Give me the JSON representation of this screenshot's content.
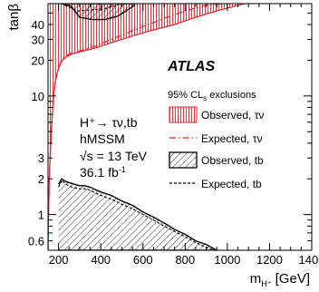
{
  "chart_data": {
    "type": "line",
    "title": "",
    "xlabel_main": "m",
    "xlabel_sub": "H⁺",
    "xlabel_unit": " [GeV]",
    "ylabel": "tanβ",
    "xlim": [
      150,
      1400
    ],
    "ylim": [
      0.5,
      60
    ],
    "yscale": "log",
    "x_ticks": [
      200,
      400,
      600,
      800,
      1000,
      1200,
      1400
    ],
    "x_tick_labels": [
      "200",
      "400",
      "600",
      "800",
      "1000",
      "1200",
      "1400"
    ],
    "y_ticks": [
      0.6,
      1,
      2,
      3,
      10,
      20,
      30,
      40
    ],
    "y_tick_labels": [
      "0.6",
      "1",
      "2",
      "3",
      "10",
      "20",
      "30",
      "40"
    ],
    "experiment": "ATLAS",
    "legend_title": "95% CL",
    "legend_title_sub": "s",
    "legend_title_rest": " exclusions",
    "legend": [
      {
        "label": "Observed, τν",
        "kind": "red-hatch"
      },
      {
        "label": "Expected, τν",
        "kind": "red-dash"
      },
      {
        "label": "Observed, tb",
        "kind": "black-hatch"
      },
      {
        "label": "Expected, tb",
        "kind": "black-dash"
      }
    ],
    "info_lines": [
      "H⁺→ τν,tb",
      "hMSSM",
      "√s = 13 TeV",
      "36.1 fb"
    ],
    "info_lumi_sup": "-1",
    "colors": {
      "tau": "#e8202a",
      "tb": "#000000"
    },
    "series": [
      {
        "name": "Observed, τν",
        "x": [
          150,
          152,
          156,
          160,
          166,
          170,
          176,
          182,
          190,
          200,
          210,
          225,
          240,
          260,
          280,
          300,
          340,
          380,
          420,
          460,
          500,
          550,
          600,
          650,
          700,
          750,
          800,
          850,
          900,
          950,
          1000,
          1050,
          1080,
          1100
        ],
        "y": [
          0.5,
          1,
          2,
          3,
          5,
          7,
          9.5,
          12,
          14.5,
          17,
          19,
          20.5,
          21.5,
          22.5,
          23,
          23.5,
          24.5,
          25.5,
          27,
          28.5,
          30,
          32,
          34,
          36,
          38,
          40,
          43,
          46,
          49,
          52,
          55,
          58,
          60,
          60
        ]
      },
      {
        "name": "Expected, τν",
        "x": [
          150,
          152,
          156,
          160,
          165,
          170,
          176,
          182,
          190,
          200,
          212,
          225,
          240,
          260,
          280,
          300,
          340,
          380,
          420,
          460,
          500,
          550,
          600,
          650,
          700,
          750,
          800,
          850,
          900,
          950,
          990
        ],
        "y": [
          0.5,
          1,
          2,
          3,
          5,
          7,
          9.5,
          12.5,
          15,
          17.5,
          19.5,
          21,
          22,
          23,
          23.5,
          24,
          25,
          26.5,
          28.5,
          30.5,
          32.5,
          35.5,
          38.5,
          41.5,
          45,
          48.5,
          52,
          55,
          58,
          59.5,
          60
        ]
      },
      {
        "name": "Observed, tb",
        "x": [
          200,
          215,
          235,
          255,
          275,
          300,
          325,
          350,
          375,
          400,
          450,
          500,
          550,
          600,
          650,
          700,
          750,
          800,
          850,
          900,
          950
        ],
        "y": [
          1.8,
          2.0,
          1.9,
          1.85,
          1.8,
          1.75,
          1.75,
          1.7,
          1.62,
          1.55,
          1.45,
          1.3,
          1.2,
          1.05,
          0.95,
          0.85,
          0.75,
          0.68,
          0.6,
          0.56,
          0.5
        ]
      },
      {
        "name": "Expected, tb",
        "x": [
          200,
          215,
          235,
          255,
          275,
          300,
          325,
          350,
          375,
          400,
          450,
          500,
          550,
          600,
          650,
          700,
          750,
          800,
          850,
          900,
          940
        ],
        "y": [
          1.7,
          1.95,
          1.8,
          1.72,
          1.68,
          1.65,
          1.65,
          1.6,
          1.52,
          1.45,
          1.35,
          1.22,
          1.12,
          1.0,
          0.9,
          0.8,
          0.72,
          0.65,
          0.58,
          0.53,
          0.5
        ]
      },
      {
        "name": "Observed, tb (high tanβ)",
        "x": [
          210,
          260,
          300,
          360,
          420,
          480,
          520,
          560,
          560,
          500,
          440,
          380,
          320,
          260,
          210
        ],
        "y": [
          60,
          57,
          46,
          44,
          44,
          47,
          52,
          58,
          60,
          60,
          60,
          60,
          60,
          60,
          60
        ]
      },
      {
        "name": "Expected, tb (high tanβ)",
        "x": [
          230,
          290,
          350,
          410,
          460,
          500
        ],
        "y": [
          58,
          52,
          53,
          54,
          57,
          60
        ]
      }
    ]
  }
}
